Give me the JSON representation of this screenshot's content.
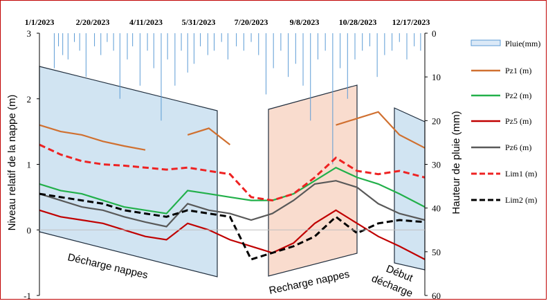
{
  "chart_data": {
    "type": "line",
    "x_tick_labels": [
      "1/1/2023",
      "2/20/2023",
      "4/11/2023",
      "5/31/2023",
      "7/20/2023",
      "9/8/2023",
      "10/28/2023",
      "12/17/2023"
    ],
    "ylabel": "Niveau relatif  de la  nappe (m)",
    "y2label": "Hauteur de pluie (mm)",
    "ylim": [
      -1,
      3
    ],
    "y_ticks": [
      "-1",
      "0",
      "1",
      "2",
      "3"
    ],
    "y2lim": [
      0,
      60
    ],
    "y2_ticks": [
      "0",
      "10",
      "20",
      "30",
      "40",
      "50",
      "60"
    ],
    "y2_inverted": true,
    "legend_position": "right",
    "legend": [
      {
        "name": "Pluie(mm)",
        "color": "#5b9bd5",
        "style": "bar"
      },
      {
        "name": "Pz1 (m)",
        "color": "#d07030",
        "style": "solid"
      },
      {
        "name": "Pz2 (m)",
        "color": "#22b04a",
        "style": "solid"
      },
      {
        "name": "Pz5 (m)",
        "color": "#c00000",
        "style": "solid"
      },
      {
        "name": "Pz6 (m)",
        "color": "#595959",
        "style": "solid"
      },
      {
        "name": "Lim1 (m)",
        "color": "#ee2222",
        "style": "dashed"
      },
      {
        "name": "Lim2 (m)",
        "color": "#000000",
        "style": "dashed"
      }
    ],
    "zones": [
      {
        "label": "Décharge nappes",
        "color": "#c9dff0"
      },
      {
        "label": "Recharge nappes",
        "color": "#f8d6c6"
      },
      {
        "label_line1": "Début",
        "label_line2": "décharge",
        "color": "#c9dff0"
      }
    ],
    "x_days": [
      0,
      20,
      40,
      60,
      80,
      100,
      120,
      140,
      160,
      180,
      200,
      220,
      240,
      260,
      280,
      300,
      320,
      340,
      364
    ],
    "series": {
      "Pz1": [
        1.6,
        1.5,
        1.45,
        1.35,
        1.28,
        1.22,
        null,
        1.45,
        1.55,
        1.3,
        null,
        null,
        null,
        null,
        1.6,
        1.7,
        1.8,
        1.45,
        1.25
      ],
      "Pz2": [
        0.7,
        0.6,
        0.55,
        0.45,
        0.35,
        0.3,
        0.25,
        0.6,
        0.55,
        0.5,
        0.45,
        0.45,
        0.55,
        0.75,
        0.95,
        0.8,
        0.7,
        0.55,
        0.35
      ],
      "Pz5": [
        0.3,
        0.2,
        0.15,
        0.1,
        0.0,
        -0.1,
        -0.15,
        0.1,
        0.0,
        -0.15,
        -0.25,
        -0.35,
        -0.2,
        0.1,
        0.3,
        0.1,
        -0.1,
        -0.25,
        -0.45
      ],
      "Pz6": [
        0.55,
        0.45,
        0.35,
        0.3,
        0.2,
        0.12,
        0.05,
        0.4,
        0.3,
        0.25,
        0.15,
        0.25,
        0.45,
        0.7,
        0.75,
        0.65,
        0.4,
        0.25,
        0.15
      ],
      "Lim1": [
        1.3,
        1.15,
        1.05,
        1.0,
        0.98,
        0.95,
        0.92,
        0.95,
        0.9,
        0.85,
        0.5,
        0.45,
        0.55,
        0.8,
        1.1,
        0.9,
        0.85,
        0.9,
        0.8
      ],
      "Lim2": [
        0.55,
        0.5,
        0.45,
        0.4,
        0.3,
        0.25,
        0.2,
        0.3,
        0.25,
        0.2,
        -0.45,
        -0.35,
        -0.25,
        -0.1,
        0.2,
        -0.05,
        0.1,
        0.15,
        0.12
      ]
    },
    "rain_days": [
      14,
      18,
      22,
      27,
      33,
      38,
      44,
      52,
      58,
      64,
      70,
      76,
      83,
      88,
      95,
      102,
      108,
      115,
      121,
      128,
      134,
      140,
      146,
      152,
      159,
      165,
      172,
      178,
      186,
      193,
      200,
      207,
      214,
      221,
      228,
      235,
      242,
      249,
      256,
      263,
      270,
      277,
      284,
      291,
      298,
      305,
      312,
      319,
      326,
      333,
      340,
      347,
      354,
      360
    ],
    "rain_mm": [
      8,
      3,
      5,
      6,
      2,
      4,
      10,
      3,
      5,
      2,
      4,
      15,
      6,
      3,
      12,
      4,
      8,
      20,
      6,
      12,
      4,
      9,
      7,
      3,
      5,
      4,
      2,
      6,
      3,
      4,
      2,
      5,
      14,
      8,
      4,
      10,
      7,
      12,
      20,
      6,
      4,
      30,
      8,
      15,
      6,
      4,
      3,
      10,
      5,
      4,
      2,
      6,
      3,
      4
    ]
  }
}
